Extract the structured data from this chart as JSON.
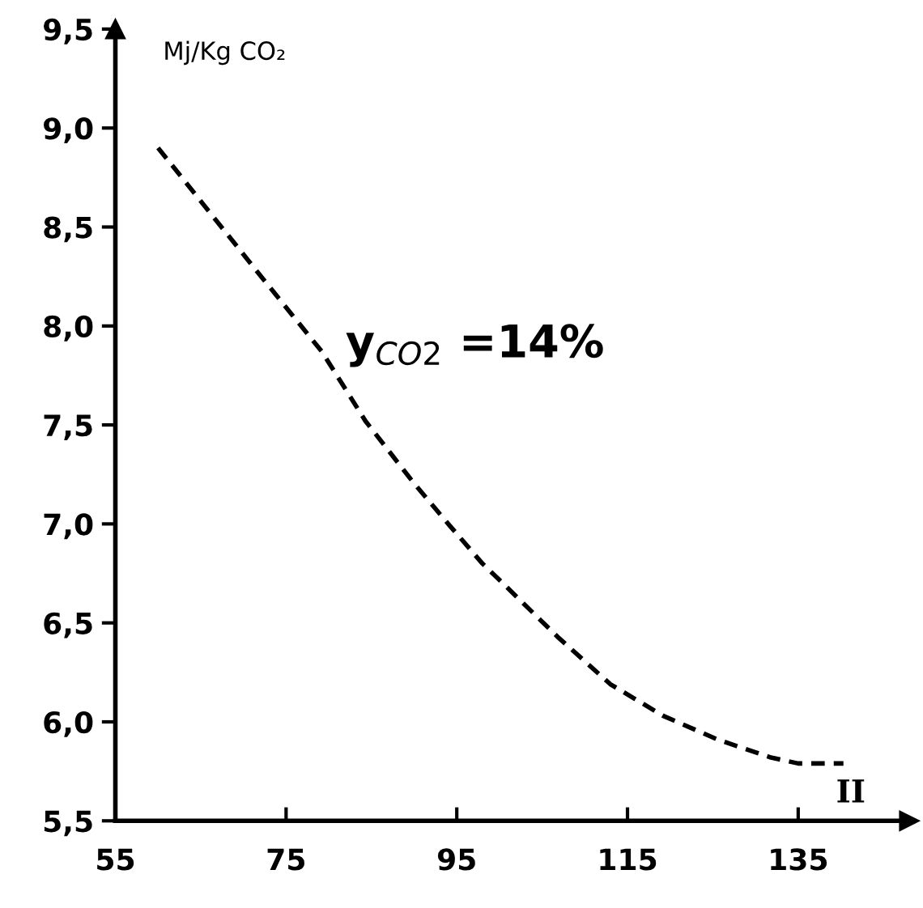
{
  "chart_data": {
    "type": "line",
    "xlabel": "II",
    "ylabel": "Mj/Kg CO₂",
    "annotations": [
      "y$_{CO2}$ =14%"
    ],
    "x": [
      60,
      71.7,
      79.2,
      84.3,
      89.9,
      94.2,
      98,
      100.4,
      106.8,
      113,
      119.2,
      125.6,
      131.8,
      135,
      140.3
    ],
    "series": [
      {
        "color": "#000000",
        "values": [
          8.9,
          8.27,
          7.87,
          7.52,
          7.21,
          6.99,
          6.8,
          6.7,
          6.43,
          6.19,
          6.03,
          5.91,
          5.82,
          5.79,
          5.79
        ]
      }
    ],
    "line_style": "dashed",
    "marker": "none",
    "grid": false,
    "legend": false,
    "xlim": [
      55,
      148
    ],
    "ylim": [
      5.5,
      9.5
    ],
    "xticks": [
      55,
      75,
      95,
      115,
      135
    ],
    "yticks": [
      {
        "value": 5.5,
        "label": "5,5"
      },
      {
        "value": 6.0,
        "label": "6,0"
      },
      {
        "value": 6.5,
        "label": "6,5"
      },
      {
        "value": 7.0,
        "label": "7,0"
      },
      {
        "value": 7.5,
        "label": "7,5"
      },
      {
        "value": 8.0,
        "label": "8,0"
      },
      {
        "value": 8.5,
        "label": "8,5"
      },
      {
        "value": 9.0,
        "label": "9,0"
      },
      {
        "value": 9.5,
        "label": "9,5"
      }
    ]
  }
}
